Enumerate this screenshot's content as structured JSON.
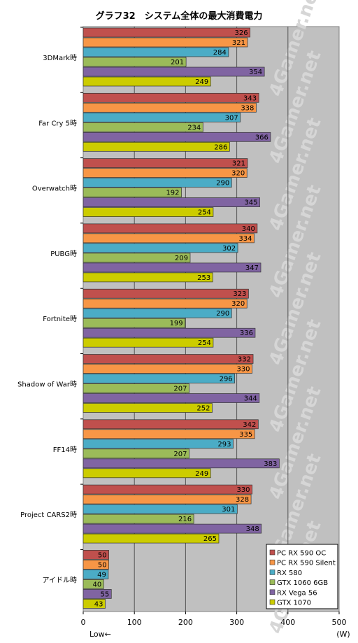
{
  "chart_data": {
    "type": "bar",
    "orientation": "horizontal",
    "title": "グラフ32　システム全体の最大消費電力",
    "categories": [
      "3DMark時",
      "Far Cry 5時",
      "Overwatch時",
      "PUBG時",
      "Fortnite時",
      "Shadow of War時",
      "FF14時",
      "Project CARS2時",
      "アイドル時"
    ],
    "series": [
      {
        "name": "PC RX 590 OC",
        "color": "#c0504d",
        "values": [
          326,
          343,
          321,
          340,
          323,
          332,
          342,
          330,
          50
        ]
      },
      {
        "name": "PC RX 590 Silent",
        "color": "#f79646",
        "values": [
          321,
          338,
          320,
          334,
          320,
          330,
          335,
          328,
          50
        ]
      },
      {
        "name": "RX 580",
        "color": "#4bacc6",
        "values": [
          284,
          307,
          290,
          302,
          290,
          296,
          293,
          301,
          49
        ]
      },
      {
        "name": "GTX 1060 6GB",
        "color": "#9bbb59",
        "values": [
          201,
          234,
          192,
          209,
          199,
          207,
          207,
          216,
          40
        ]
      },
      {
        "name": "RX Vega 56",
        "color": "#8064a2",
        "values": [
          354,
          366,
          345,
          347,
          336,
          344,
          383,
          348,
          55
        ]
      },
      {
        "name": "GTX 1070",
        "color": "#cccc00",
        "values": [
          249,
          286,
          254,
          253,
          254,
          252,
          249,
          265,
          43
        ]
      }
    ],
    "xlim": [
      0,
      500
    ],
    "xticks": [
      "0",
      "100",
      "200",
      "300",
      "400",
      "500"
    ],
    "xlabel_left": "Low←",
    "xlabel_right": "(W)",
    "watermark": "4Gamer.net",
    "grid": true,
    "legend_position": "bottom-right"
  }
}
